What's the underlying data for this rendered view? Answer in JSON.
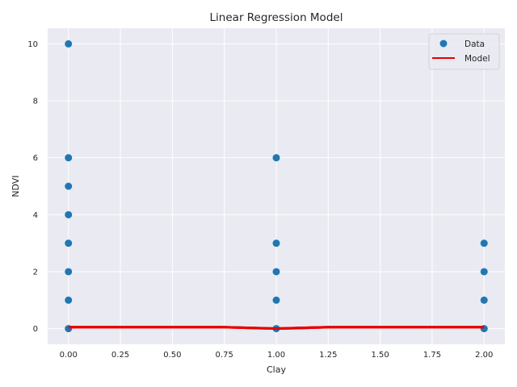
{
  "chart_data": {
    "type": "scatter",
    "title": "Linear Regression Model",
    "xlabel": "Clay",
    "ylabel": "NDVI",
    "xlim": [
      -0.1,
      2.1
    ],
    "ylim": [
      -0.55,
      10.55
    ],
    "xticks": [
      0.0,
      0.25,
      0.5,
      0.75,
      1.0,
      1.25,
      1.5,
      1.75,
      2.0
    ],
    "xtick_labels": [
      "0.00",
      "0.25",
      "0.50",
      "0.75",
      "1.00",
      "1.25",
      "1.50",
      "1.75",
      "2.00"
    ],
    "yticks": [
      0,
      2,
      4,
      6,
      8,
      10
    ],
    "ytick_labels": [
      "0",
      "2",
      "4",
      "6",
      "8",
      "10"
    ],
    "grid": true,
    "legend_position": "top-right",
    "colors": {
      "background": "#eaeaf2",
      "grid": "#ffffff",
      "data": "#1f77b4",
      "model": "#e60000"
    },
    "series": [
      {
        "name": "Data",
        "kind": "scatter",
        "points": [
          [
            0,
            0
          ],
          [
            0,
            1
          ],
          [
            0,
            2
          ],
          [
            0,
            3
          ],
          [
            0,
            4
          ],
          [
            0,
            5
          ],
          [
            0,
            6
          ],
          [
            0,
            10
          ],
          [
            1,
            0
          ],
          [
            1,
            1
          ],
          [
            1,
            2
          ],
          [
            1,
            3
          ],
          [
            1,
            6
          ],
          [
            2,
            0
          ],
          [
            2,
            1
          ],
          [
            2,
            2
          ],
          [
            2,
            3
          ]
        ]
      },
      {
        "name": "Model",
        "kind": "line",
        "points": [
          [
            0,
            0.05
          ],
          [
            0.75,
            0.05
          ],
          [
            1,
            0.0
          ],
          [
            1.25,
            0.05
          ],
          [
            2,
            0.05
          ]
        ]
      }
    ]
  }
}
